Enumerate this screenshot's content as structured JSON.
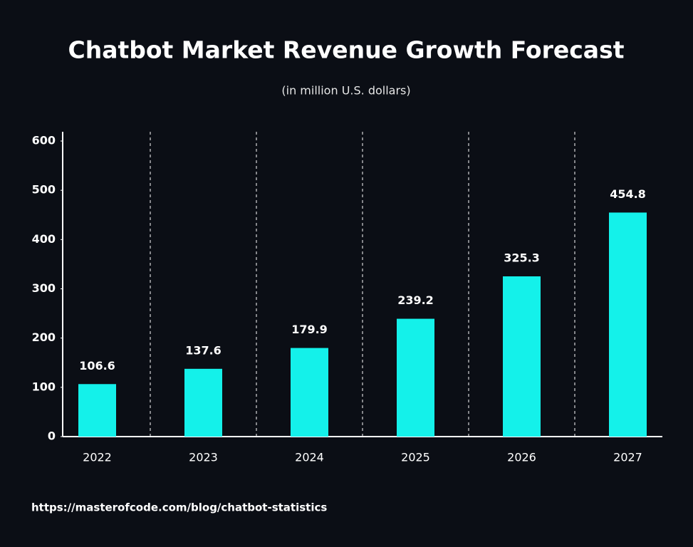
{
  "chart_data": {
    "type": "bar",
    "title": "Chatbot Market Revenue Growth Forecast",
    "subtitle": "(in million U.S. dollars)",
    "source": "https://masterofcode.com/blog/chatbot-statistics",
    "categories": [
      "2022",
      "2023",
      "2024",
      "2025",
      "2026",
      "2027"
    ],
    "values": [
      106.6,
      137.6,
      179.9,
      239.2,
      325.3,
      454.8
    ],
    "color": "#14f1ea",
    "ylim": [
      0,
      600
    ],
    "yticks": [
      0,
      100,
      200,
      300,
      400,
      500,
      600
    ],
    "category_separators": true
  }
}
